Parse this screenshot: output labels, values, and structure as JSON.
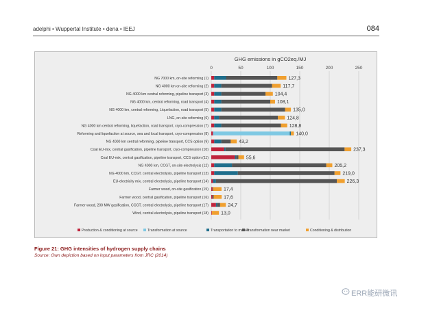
{
  "header": {
    "left": "adelphi • Wuppertal Institute • dena • IEEJ",
    "page_number": "084"
  },
  "figure": {
    "caption": "Figure 21: GHG intensities of hydrogen supply chains",
    "source": "Source: Own depiction based on input parameters from JRC (2014)"
  },
  "watermark": {
    "text": "ERR能研微讯"
  },
  "chart_data": {
    "type": "bar",
    "orientation": "horizontal",
    "stacked": true,
    "title": "GHG emissions in gCO2eq./MJ",
    "xlim": [
      0,
      250
    ],
    "x_ticks": [
      "0",
      "50",
      "100",
      "150",
      "200",
      "250"
    ],
    "grid": true,
    "legend_placement": "bottom",
    "categories": [
      "NG 7000 km, on-site reforming (1)",
      "NG 4000 km on-site reforming (2)",
      "NG 4000 km central reforming, pipeline transport (3)",
      "NG 4000 km, central reforming, road transport (4)",
      "NG 4000 km, central reforming, Liquefaction, road transport (5)",
      "LNG, on-site reforming (6)",
      "NG 4000 km central reforming, liquefaction, road transport, cryo-compression (7)",
      "Reforming and liquefaction at source, sea and local transport, cryo-compression (8)",
      "NG 4000 km central reforming, pipeline transport, CCS option (9)",
      "Coal EU-mix, central gasification, pipeline transport, cryo-compression (10)",
      "Coal EU-mix, central gasification, pipeline transport, CCS option (11)",
      "NG 4000 km, CCGT, on-site electrolysis (12)",
      "NG 4000 km, CCGT, central electrolysis, pipeline transport (13)",
      "EU-electricity mix, central electrolysis, pipeline transport (14)",
      "Farmer wood, on-site gasification (15)",
      "Farmer wood, central gasification, pipeline transport (16)",
      "Farmer wood, 200 MW gasification, CCGT, central electrolysis, pipeline transport (17)",
      "Wind, central electrolysis, pipeline transport (18)"
    ],
    "totals": [
      "127,3",
      "117,7",
      "104,4",
      "108,1",
      "135,0",
      "124,8",
      "128,8",
      "140,0",
      "43,2",
      "237,3",
      "55,6",
      "205,2",
      "219,0",
      "226,3",
      "17,4",
      "17,6",
      "24,7",
      "13,0"
    ],
    "series": [
      {
        "name": "Production & conditioning at source",
        "color": "#c0243c",
        "values": [
          5,
          5,
          5,
          5,
          5,
          5,
          5,
          3,
          5,
          22,
          40,
          5,
          5,
          3,
          2,
          2,
          8,
          1
        ]
      },
      {
        "name": "Transformation at source",
        "color": "#7ec8e3",
        "values": [
          0,
          0,
          0,
          0,
          0,
          0,
          0,
          130,
          0,
          0,
          0,
          0,
          0,
          0,
          0,
          0,
          0,
          0
        ]
      },
      {
        "name": "Transportation to market",
        "color": "#1f6e8c",
        "values": [
          20,
          12,
          12,
          12,
          12,
          8,
          12,
          2,
          12,
          2,
          2,
          30,
          40,
          5,
          0,
          0,
          2,
          0
        ]
      },
      {
        "name": "Transformation near market",
        "color": "#555555",
        "values": [
          87,
          86,
          75,
          83,
          108,
          100,
          101,
          0,
          16,
          202,
          4,
          160,
          164,
          205,
          1,
          2,
          5,
          0
        ]
      },
      {
        "name": "Conditioning & distribution",
        "color": "#f0a030",
        "values": [
          15.3,
          14.7,
          12.4,
          8.1,
          10,
          11.8,
          10.8,
          5,
          10.2,
          11.3,
          9.6,
          10.2,
          10,
          13.3,
          14.4,
          13.6,
          9.7,
          12
        ]
      }
    ]
  }
}
